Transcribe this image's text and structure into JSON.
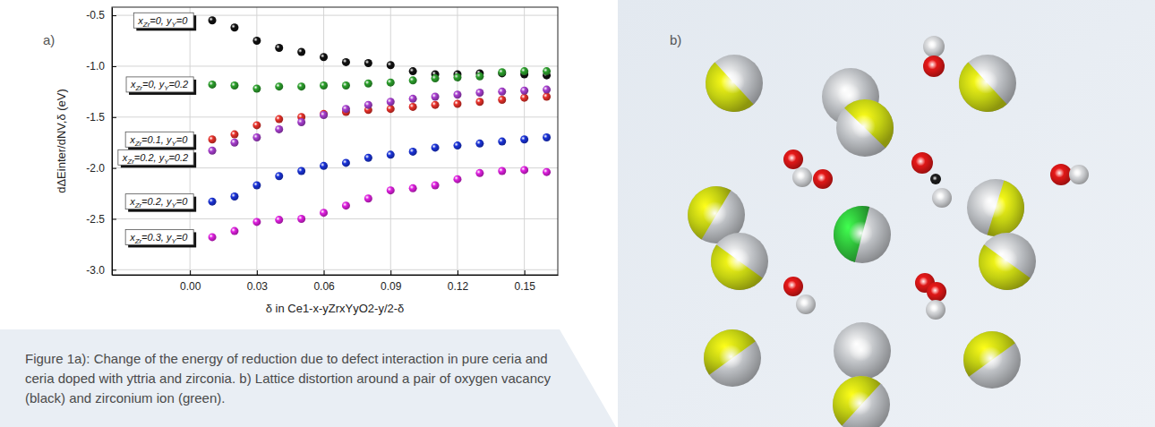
{
  "chart_data": {
    "type": "scatter",
    "xlabel": "δ in Ce1-x-yZrxYyO2-y/2-δ",
    "ylabel": "dΔEinter/dNV,δ (eV)",
    "x": [
      0.01,
      0.02,
      0.03,
      0.04,
      0.05,
      0.06,
      0.07,
      0.08,
      0.09,
      0.1,
      0.11,
      0.12,
      0.13,
      0.14,
      0.15,
      0.16
    ],
    "series": [
      {
        "name": "xZr=0, yY=0",
        "color": "#111111",
        "marker": "circle",
        "values": [
          -0.55,
          -0.62,
          -0.75,
          -0.82,
          -0.86,
          -0.91,
          -0.96,
          -0.97,
          -0.99,
          -1.05,
          -1.08,
          -1.08,
          -1.07,
          -1.07,
          -1.08,
          -1.09
        ]
      },
      {
        "name": "xZr=0, yY=0.2",
        "color": "#2ca02c",
        "marker": "circle",
        "values": [
          -1.18,
          -1.19,
          -1.22,
          -1.2,
          -1.2,
          -1.19,
          -1.19,
          -1.17,
          -1.16,
          -1.14,
          -1.12,
          -1.11,
          -1.1,
          -1.06,
          -1.05,
          -1.05
        ]
      },
      {
        "name": "xZr=0.1, yY=0",
        "color": "#e8312a",
        "marker": "circle",
        "values": [
          -1.72,
          -1.67,
          -1.58,
          -1.52,
          -1.5,
          -1.47,
          -1.45,
          -1.43,
          -1.42,
          -1.4,
          -1.38,
          -1.37,
          -1.35,
          -1.33,
          -1.31,
          -1.3
        ]
      },
      {
        "name": "xZr=0.2, yY=0.2",
        "color": "#a83fd0",
        "marker": "circle",
        "values": [
          -1.83,
          -1.75,
          -1.7,
          -1.62,
          -1.55,
          -1.48,
          -1.42,
          -1.38,
          -1.35,
          -1.32,
          -1.3,
          -1.28,
          -1.26,
          -1.25,
          -1.24,
          -1.23
        ]
      },
      {
        "name": "xZr=0.2, yY=0",
        "color": "#1a33d8",
        "marker": "circle",
        "values": [
          -2.33,
          -2.28,
          -2.17,
          -2.08,
          -2.03,
          -1.98,
          -1.95,
          -1.9,
          -1.87,
          -1.84,
          -1.8,
          -1.78,
          -1.76,
          -1.74,
          -1.72,
          -1.7
        ]
      },
      {
        "name": "xZr=0.3, yY=0",
        "color": "#e020e0",
        "marker": "circle",
        "values": [
          -2.68,
          -2.62,
          -2.53,
          -2.51,
          -2.5,
          -2.44,
          -2.37,
          -2.3,
          -2.22,
          -2.2,
          -2.17,
          -2.11,
          -2.05,
          -2.03,
          -2.02,
          -2.04
        ]
      }
    ],
    "xlim": [
      -0.035,
      0.165
    ],
    "xticks": [
      {
        "value": 0,
        "label": "0.00"
      },
      0.03,
      0.06,
      0.09,
      0.12,
      0.15
    ],
    "ylim": [
      -3.05,
      -0.42
    ],
    "yticks": [
      -0.5,
      {
        "value": -1,
        "label": "-1.0"
      },
      -1.5,
      {
        "value": -2,
        "label": "-2.0"
      },
      -2.5,
      {
        "value": -3,
        "label": "-3.0"
      }
    ],
    "grid": true,
    "legend": "left"
  },
  "figure": {
    "panel_labels": [
      "a)",
      "b)"
    ],
    "caption": "Figure 1a): Change of the energy of reduction due to defect interaction in pure ceria and ceria doped with yttria and zirconia. b) Lattice distortion around a pair of oxygen vacancy (black) and zirconium ion (green)."
  }
}
